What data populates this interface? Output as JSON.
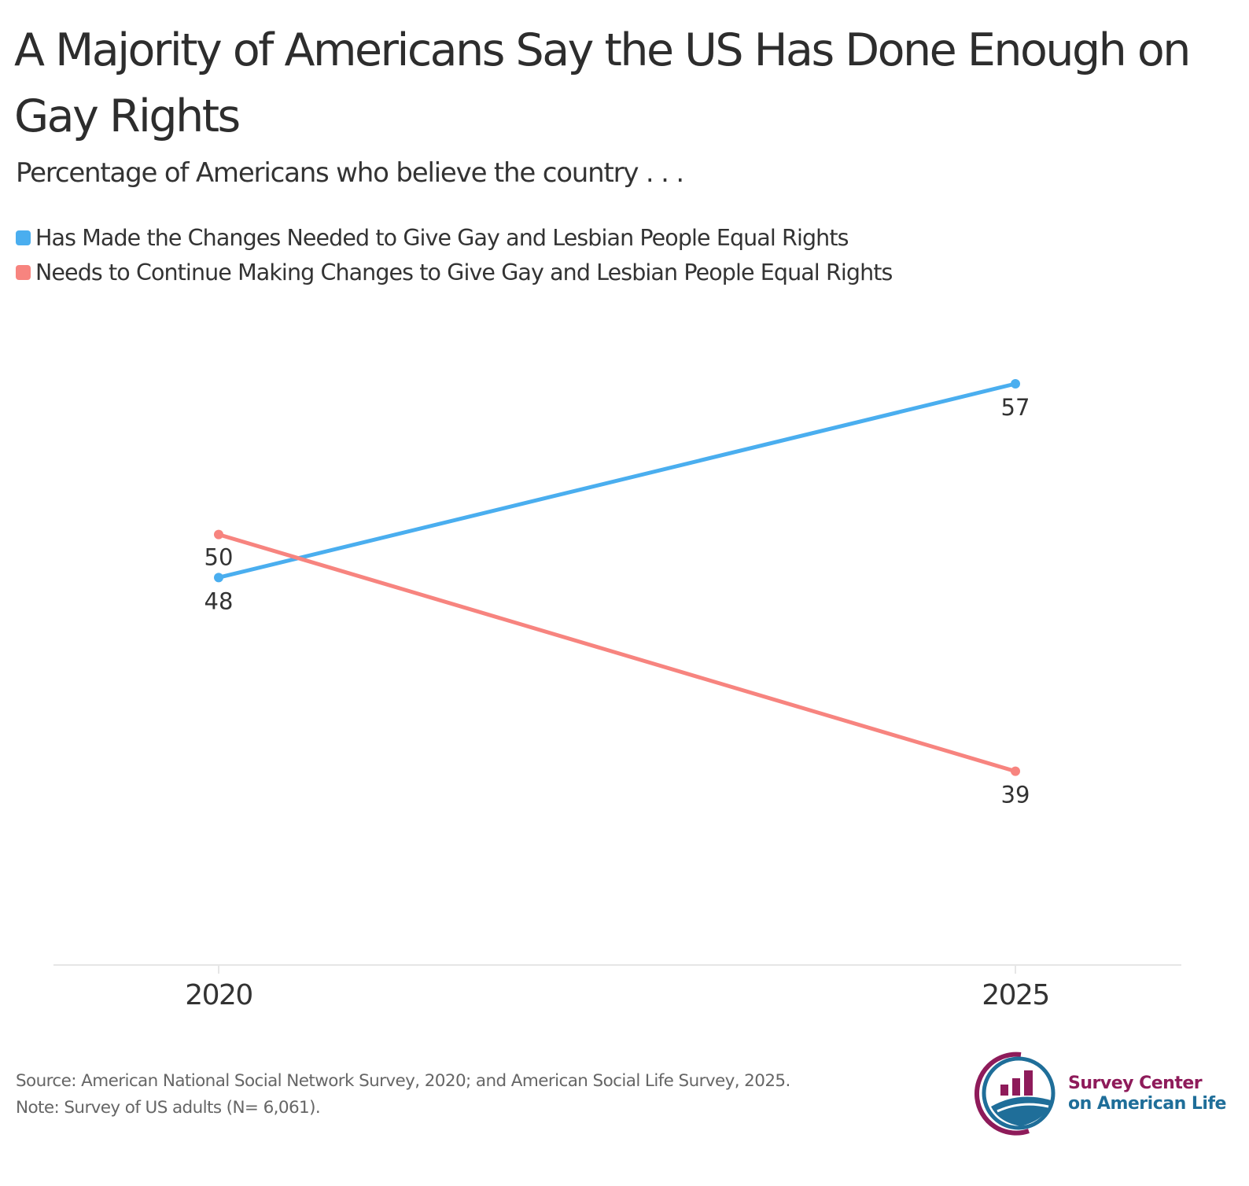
{
  "title": "A Majority of Americans Say the US Has Done Enough on Gay Rights",
  "subtitle": "Percentage of Americans who believe the country . . .",
  "colors": {
    "series1": "#4aaeef",
    "series2": "#f7847f",
    "logo_magenta": "#8e1b5a",
    "logo_blue": "#1f6e99"
  },
  "chart_data": {
    "type": "line",
    "x": [
      "2020",
      "2025"
    ],
    "series": [
      {
        "name": "Has Made the Changes Needed to Give Gay and Lesbian People Equal Rights",
        "values": [
          48,
          57
        ],
        "color": "#4aaeef"
      },
      {
        "name": "Needs to Continue Making Changes to Give Gay and Lesbian People Equal Rights",
        "values": [
          50,
          39
        ],
        "color": "#f7847f"
      }
    ],
    "ylim": [
      30,
      57
    ],
    "grid": false,
    "legend": "top-left",
    "xlabel": "",
    "ylabel": ""
  },
  "footer": {
    "source": "Source: American National Social Network Survey, 2020; and American Social Life Survey, 2025.",
    "note": "Note: Survey of US adults (N= 6,061)."
  },
  "logo": {
    "line1": "Survey Center",
    "line2": "on American Life"
  }
}
